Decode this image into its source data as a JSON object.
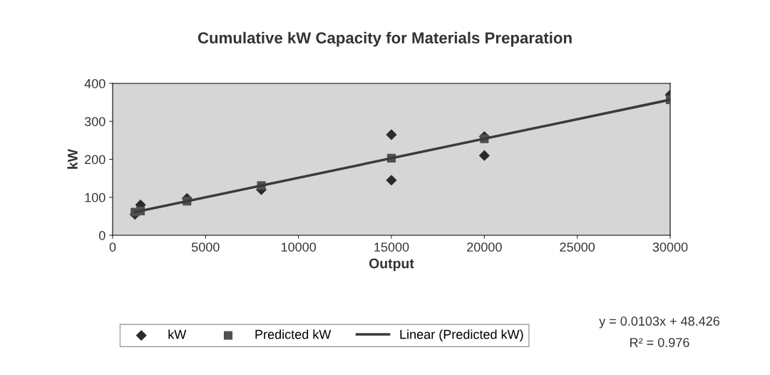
{
  "chart_data": {
    "type": "scatter",
    "title": "Cumulative kW Capacity for Materials Preparation",
    "xlabel": "Output",
    "ylabel": "kW",
    "xlim": [
      0,
      30000
    ],
    "xticks": [
      0,
      5000,
      10000,
      15000,
      20000,
      25000,
      30000
    ],
    "ylim": [
      0,
      400
    ],
    "yticks": [
      0,
      100,
      200,
      300,
      400
    ],
    "grid": false,
    "legend": "bottom",
    "series": [
      {
        "name": "kW",
        "marker": "diamond",
        "color": "#2b2b2b",
        "x": [
          1200,
          1500,
          4000,
          8000,
          15000,
          15000,
          20000,
          20000,
          30000
        ],
        "values": [
          55,
          80,
          97,
          120,
          265,
          145,
          260,
          210,
          370
        ]
      },
      {
        "name": "Predicted kW",
        "marker": "square",
        "color": "#505050",
        "x": [
          1200,
          1500,
          4000,
          8000,
          15000,
          20000,
          30000
        ],
        "values": [
          61,
          64,
          90,
          131,
          203,
          254,
          357
        ]
      },
      {
        "name": "Linear (Predicted kW)",
        "type": "line",
        "marker": "none",
        "line_style": "solid",
        "color": "#3a3a3a",
        "x": [
          1200,
          30000
        ],
        "values": [
          61,
          357
        ]
      }
    ],
    "annotations": [
      "y = 0.0103x + 48.426",
      "R² = 0.976"
    ]
  }
}
